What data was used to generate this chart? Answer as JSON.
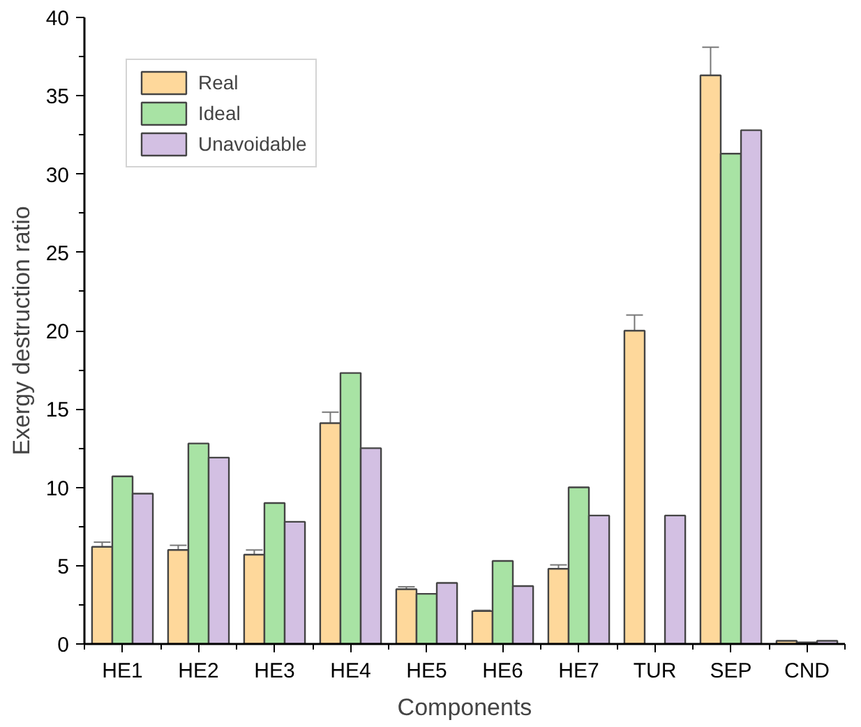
{
  "chart_data": {
    "type": "bar",
    "xlabel": "Components",
    "ylabel": "Exergy destruction ratio",
    "categories": [
      "HE1",
      "HE2",
      "HE3",
      "HE4",
      "HE5",
      "HE6",
      "HE7",
      "TUR",
      "SEP",
      "CND"
    ],
    "series": [
      {
        "name": "Real",
        "color": "#fed89b",
        "values": [
          6.2,
          6.0,
          5.7,
          14.1,
          3.5,
          2.1,
          4.8,
          20.0,
          36.3,
          0.2
        ],
        "errors": [
          0.3,
          0.3,
          0.3,
          0.7,
          0.15,
          0.05,
          0.25,
          1.0,
          1.8,
          null
        ]
      },
      {
        "name": "Ideal",
        "color": "#a8e3a4",
        "values": [
          10.7,
          12.8,
          9.0,
          17.3,
          3.2,
          5.3,
          10.0,
          null,
          31.3,
          0.1
        ]
      },
      {
        "name": "Unavoidable",
        "color": "#d3c0e3",
        "values": [
          9.6,
          11.9,
          7.8,
          12.5,
          3.9,
          3.7,
          8.2,
          8.2,
          32.8,
          0.2
        ]
      }
    ],
    "ylim": [
      0,
      40
    ],
    "yticks": [
      0,
      5,
      10,
      15,
      20,
      25,
      30,
      35,
      40
    ],
    "grid": false,
    "legend": "top left"
  }
}
